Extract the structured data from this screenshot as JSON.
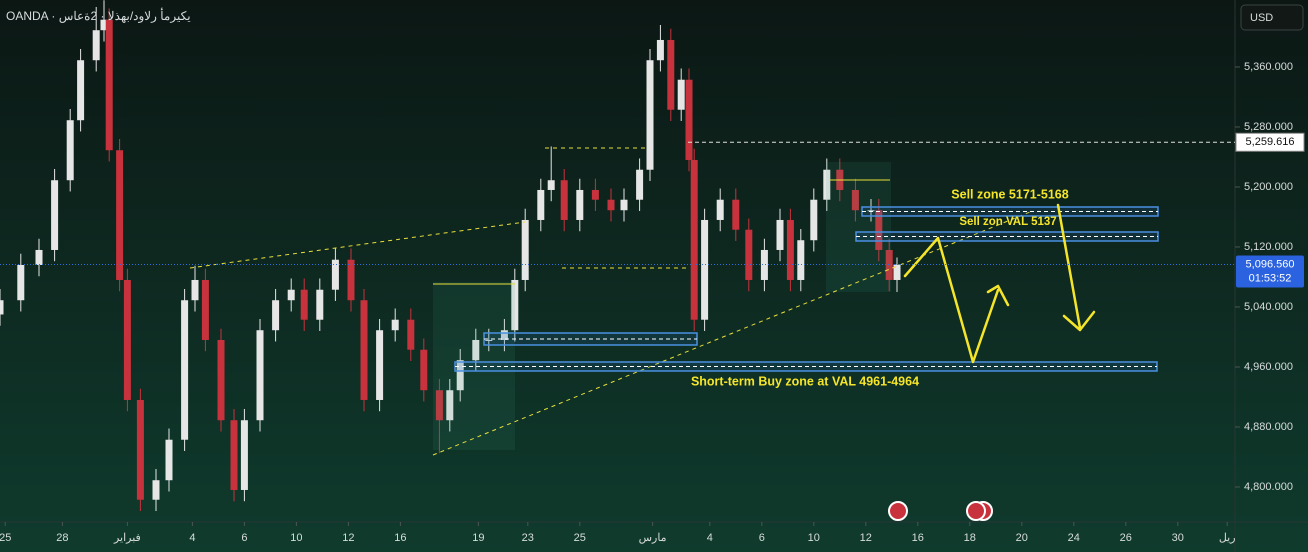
{
  "chart_data": {
    "type": "candlestick",
    "title": "OANDA · يكيرمأ رلاود/بهذلا · 2ةعاس",
    "currency_button": "USD",
    "up_color": "#e6e6e6",
    "down_color": "#c8323c",
    "xlim": [
      0,
      47.5
    ],
    "xticks": [
      {
        "value": 0.2,
        "label": "25"
      },
      {
        "value": 2.4,
        "label": "28"
      },
      {
        "value": 4.9,
        "label": "فبراير"
      },
      {
        "value": 7.4,
        "label": "4"
      },
      {
        "value": 9.4,
        "label": "6"
      },
      {
        "value": 11.4,
        "label": "10"
      },
      {
        "value": 13.4,
        "label": "12"
      },
      {
        "value": 15.4,
        "label": "16"
      },
      {
        "value": 18.4,
        "label": "19"
      },
      {
        "value": 20.3,
        "label": "23"
      },
      {
        "value": 22.3,
        "label": "25"
      },
      {
        "value": 25.1,
        "label": "مارس"
      },
      {
        "value": 27.3,
        "label": "4"
      },
      {
        "value": 29.3,
        "label": "6"
      },
      {
        "value": 31.3,
        "label": "10"
      },
      {
        "value": 33.3,
        "label": "12"
      },
      {
        "value": 35.3,
        "label": "16"
      },
      {
        "value": 37.3,
        "label": "18"
      },
      {
        "value": 39.3,
        "label": "20"
      },
      {
        "value": 41.3,
        "label": "24"
      },
      {
        "value": 43.3,
        "label": "26"
      },
      {
        "value": 45.3,
        "label": "30"
      },
      {
        "value": 47.2,
        "label": "ريل"
      }
    ],
    "ylim": [
      4753.3,
      5449.3
    ],
    "yticks": [
      {
        "value": 4800,
        "label": "4,800.000"
      },
      {
        "value": 4880,
        "label": "4,880.000"
      },
      {
        "value": 4960,
        "label": "4,960.000"
      },
      {
        "value": 5040,
        "label": "5,040.000"
      },
      {
        "value": 5120,
        "label": "5,120.000"
      },
      {
        "value": 5200,
        "label": "5,200.000"
      },
      {
        "value": 5280,
        "label": "5,280.000"
      },
      {
        "value": 5360,
        "label": "5,360.000"
      }
    ],
    "x": [
      0.0,
      0.8,
      1.5,
      2.1,
      2.7,
      3.1,
      3.7,
      4.0,
      4.2,
      4.6,
      4.9,
      5.4,
      6.0,
      6.5,
      7.1,
      7.5,
      7.9,
      8.5,
      9.0,
      9.4,
      10.0,
      10.6,
      11.2,
      11.7,
      12.3,
      12.9,
      13.5,
      14.0,
      14.6,
      15.2,
      15.8,
      16.3,
      16.9,
      17.3,
      17.7,
      18.3,
      18.8,
      19.4,
      19.8,
      20.2,
      20.8,
      21.2,
      21.7,
      22.3,
      22.9,
      23.5,
      24.0,
      24.6,
      25.0,
      25.4,
      25.8,
      26.2,
      26.5,
      26.7,
      27.1,
      27.7,
      28.3,
      28.8,
      29.4,
      30.0,
      30.4,
      30.8,
      31.3,
      31.8,
      32.3,
      32.9,
      33.5,
      33.8,
      34.2,
      34.5
    ],
    "open": [
      5030,
      5049,
      5096,
      5116,
      5209,
      5289,
      5369,
      5409,
      5423,
      5249,
      5076,
      4916,
      4783,
      4809,
      4863,
      5049,
      5076,
      4996,
      4889,
      4796,
      4889,
      5009,
      5049,
      5063,
      5023,
      5063,
      5103,
      5049,
      4916,
      5009,
      5023,
      4983,
      4929,
      4889,
      4929,
      4969,
      4996,
      4996,
      5009,
      5076,
      5156,
      5196,
      5209,
      5156,
      5196,
      5183,
      5169,
      5183,
      5223,
      5369,
      5396,
      5303,
      5343,
      5236,
      5023,
      5156,
      5183,
      5143,
      5076,
      5116,
      5156,
      5076,
      5129,
      5183,
      5223,
      5196,
      5169,
      5169,
      5116,
      5076
    ],
    "high": [
      5064,
      5111,
      5131,
      5224,
      5304,
      5384,
      5440,
      5449,
      5438,
      5264,
      5091,
      4931,
      4824,
      4878,
      5064,
      5095,
      5091,
      5011,
      4904,
      4904,
      5024,
      5064,
      5078,
      5078,
      5078,
      5118,
      5118,
      5064,
      5024,
      5038,
      5038,
      4998,
      4944,
      4944,
      4984,
      5011,
      5011,
      5024,
      5091,
      5171,
      5211,
      5254,
      5224,
      5211,
      5211,
      5198,
      5198,
      5238,
      5384,
      5416,
      5411,
      5358,
      5358,
      5251,
      5171,
      5198,
      5198,
      5158,
      5131,
      5171,
      5171,
      5144,
      5198,
      5238,
      5238,
      5211,
      5184,
      5184,
      5131,
      5106
    ],
    "low": [
      5015,
      5034,
      5081,
      5101,
      5194,
      5274,
      5354,
      5394,
      5234,
      5061,
      4901,
      4768,
      4768,
      4794,
      4848,
      5034,
      4981,
      4874,
      4781,
      4781,
      4874,
      4994,
      5034,
      5008,
      5008,
      5048,
      5034,
      4901,
      4901,
      4994,
      4968,
      4914,
      4845,
      4874,
      4914,
      4954,
      4981,
      4981,
      4994,
      5061,
      5141,
      5181,
      5141,
      5141,
      5168,
      5154,
      5154,
      5168,
      5208,
      5354,
      5288,
      5288,
      5221,
      5008,
      5008,
      5141,
      5128,
      5061,
      5061,
      5101,
      5061,
      5061,
      5114,
      5168,
      5181,
      5154,
      5154,
      5101,
      5061,
      5060
    ],
    "close": [
      5049,
      5096,
      5116,
      5209,
      5289,
      5369,
      5409,
      5423,
      5249,
      5076,
      4916,
      4783,
      4809,
      4863,
      5049,
      5076,
      4996,
      4889,
      4796,
      4889,
      5009,
      5049,
      5063,
      5023,
      5063,
      5103,
      5049,
      4916,
      5009,
      5023,
      4983,
      4929,
      4889,
      4929,
      4969,
      4996,
      4996,
      5009,
      5076,
      5156,
      5196,
      5209,
      5156,
      5196,
      5183,
      5169,
      5183,
      5223,
      5369,
      5396,
      5303,
      5343,
      5236,
      5023,
      5156,
      5183,
      5143,
      5076,
      5116,
      5156,
      5076,
      5129,
      5183,
      5223,
      5196,
      5169,
      5169,
      5116,
      5076,
      5096.56
    ],
    "high_line": {
      "value": 5259.616,
      "label": "5,259.616"
    },
    "last_price": {
      "value": 5096.56,
      "label": "5,096.560"
    },
    "countdown": "01:53:52",
    "annotations": [
      "Sell zone 5171-5168",
      "Sell zon VAL 5137",
      "Short-term Buy zone at VAL 4961-4964"
    ]
  }
}
